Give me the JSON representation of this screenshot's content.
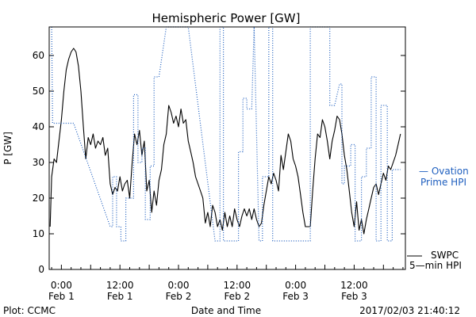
{
  "chart_data": {
    "type": "line",
    "title": "Hemispheric Power [GW]",
    "ylabel": "P [GW]",
    "xlabel": "Date and Time",
    "ylim": [
      0,
      68
    ],
    "xlim": [
      -2.5,
      70.5
    ],
    "grid": false,
    "legend_position": "right",
    "y_ticks": [
      0,
      10,
      20,
      30,
      40,
      50,
      60
    ],
    "y_tick_labels": [
      "0",
      "10",
      "20",
      "30",
      "40",
      "50",
      "60"
    ],
    "x_ticks": [
      {
        "x": 0,
        "time": "0:00",
        "date": "Feb 1"
      },
      {
        "x": 12,
        "time": "12:00",
        "date": "Feb 1"
      },
      {
        "x": 24,
        "time": "0:00",
        "date": "Feb 2"
      },
      {
        "x": 36,
        "time": "12:00",
        "date": "Feb 2"
      },
      {
        "x": 48,
        "time": "0:00",
        "date": "Feb 3"
      },
      {
        "x": 60,
        "time": "12:00",
        "date": "Feb 3"
      }
    ],
    "series": [
      {
        "name": "SWPC 5-min HPI",
        "color": "#000000",
        "style": "solid",
        "points": [
          [
            -2.3,
            12
          ],
          [
            -2.0,
            26
          ],
          [
            -1.5,
            31
          ],
          [
            -1.0,
            30
          ],
          [
            -0.5,
            36
          ],
          [
            0,
            42
          ],
          [
            0.5,
            50
          ],
          [
            1.0,
            56
          ],
          [
            1.5,
            59
          ],
          [
            2.0,
            61
          ],
          [
            2.5,
            62
          ],
          [
            3.0,
            61
          ],
          [
            3.5,
            57
          ],
          [
            4.0,
            50
          ],
          [
            4.5,
            40
          ],
          [
            5.0,
            31
          ],
          [
            5.5,
            37
          ],
          [
            6.0,
            35
          ],
          [
            6.5,
            38
          ],
          [
            7.0,
            34
          ],
          [
            7.5,
            36
          ],
          [
            8.0,
            35
          ],
          [
            8.5,
            37
          ],
          [
            9.0,
            32
          ],
          [
            9.5,
            34
          ],
          [
            10.0,
            24
          ],
          [
            10.5,
            21
          ],
          [
            11.0,
            23
          ],
          [
            11.5,
            22
          ],
          [
            12.0,
            26
          ],
          [
            12.5,
            22
          ],
          [
            13.0,
            24
          ],
          [
            13.5,
            25
          ],
          [
            14.0,
            20
          ],
          [
            14.5,
            30
          ],
          [
            15.0,
            38
          ],
          [
            15.5,
            35
          ],
          [
            16.0,
            39
          ],
          [
            16.5,
            32
          ],
          [
            17.0,
            36
          ],
          [
            17.5,
            22
          ],
          [
            18.0,
            25
          ],
          [
            18.5,
            16
          ],
          [
            19.0,
            22
          ],
          [
            19.5,
            18
          ],
          [
            20.0,
            25
          ],
          [
            20.5,
            28
          ],
          [
            21.0,
            35
          ],
          [
            21.5,
            38
          ],
          [
            22.0,
            46
          ],
          [
            22.5,
            44
          ],
          [
            23.0,
            41
          ],
          [
            23.5,
            43
          ],
          [
            24.0,
            40
          ],
          [
            24.5,
            45
          ],
          [
            25.0,
            41
          ],
          [
            25.5,
            42
          ],
          [
            26.0,
            36
          ],
          [
            26.5,
            33
          ],
          [
            27.0,
            30
          ],
          [
            27.5,
            26
          ],
          [
            28.0,
            24
          ],
          [
            28.5,
            22
          ],
          [
            29.0,
            20
          ],
          [
            29.5,
            13
          ],
          [
            30.0,
            16
          ],
          [
            30.5,
            12
          ],
          [
            31.0,
            18
          ],
          [
            31.5,
            16
          ],
          [
            32.0,
            12
          ],
          [
            32.5,
            14
          ],
          [
            33.0,
            11
          ],
          [
            33.5,
            16
          ],
          [
            34.0,
            12
          ],
          [
            34.5,
            15
          ],
          [
            35.0,
            12
          ],
          [
            35.5,
            17
          ],
          [
            36.0,
            14
          ],
          [
            36.5,
            12
          ],
          [
            37.0,
            15
          ],
          [
            37.5,
            17
          ],
          [
            38.0,
            15
          ],
          [
            38.5,
            17
          ],
          [
            39.0,
            14
          ],
          [
            39.5,
            17
          ],
          [
            40.0,
            14
          ],
          [
            40.5,
            12
          ],
          [
            41.0,
            13
          ],
          [
            41.5,
            18
          ],
          [
            42.0,
            22
          ],
          [
            42.5,
            26
          ],
          [
            43.0,
            24
          ],
          [
            43.5,
            27
          ],
          [
            44.0,
            25
          ],
          [
            44.5,
            22
          ],
          [
            45.0,
            32
          ],
          [
            45.5,
            28
          ],
          [
            46.0,
            33
          ],
          [
            46.5,
            38
          ],
          [
            47.0,
            36
          ],
          [
            47.5,
            31
          ],
          [
            48.0,
            29
          ],
          [
            48.5,
            26
          ],
          [
            49.0,
            21
          ],
          [
            49.5,
            16
          ],
          [
            50.0,
            12
          ],
          [
            51.0,
            12
          ],
          [
            51.5,
            22
          ],
          [
            52.0,
            31
          ],
          [
            52.5,
            38
          ],
          [
            53.0,
            37
          ],
          [
            53.5,
            42
          ],
          [
            54.0,
            40
          ],
          [
            54.5,
            36
          ],
          [
            55.0,
            31
          ],
          [
            55.5,
            36
          ],
          [
            56.0,
            39
          ],
          [
            56.5,
            43
          ],
          [
            57.0,
            42
          ],
          [
            57.5,
            38
          ],
          [
            58.0,
            32
          ],
          [
            58.5,
            28
          ],
          [
            59.0,
            22
          ],
          [
            59.5,
            16
          ],
          [
            60.0,
            12
          ],
          [
            60.5,
            19
          ],
          [
            61.0,
            11
          ],
          [
            61.5,
            14
          ],
          [
            62.0,
            10
          ],
          [
            62.5,
            14
          ],
          [
            63.0,
            17
          ],
          [
            63.5,
            20
          ],
          [
            64.0,
            23
          ],
          [
            64.5,
            24
          ],
          [
            65.0,
            21
          ],
          [
            65.5,
            24
          ],
          [
            66.0,
            27
          ],
          [
            66.5,
            25
          ],
          [
            67.0,
            29
          ],
          [
            67.5,
            28
          ],
          [
            68.0,
            30
          ],
          [
            68.5,
            32
          ],
          [
            69.0,
            35
          ],
          [
            69.5,
            38
          ]
        ]
      },
      {
        "name": "Ovation Prime HPI",
        "color": "#1f5fbf",
        "style": "dotted",
        "points": [
          [
            -2.0,
            68
          ],
          [
            -1.8,
            41
          ],
          [
            1.5,
            41
          ],
          [
            2.5,
            41
          ],
          [
            10.0,
            12
          ],
          [
            10.5,
            12
          ],
          [
            10.5,
            26
          ],
          [
            11.3,
            26
          ],
          [
            11.3,
            12
          ],
          [
            12.2,
            12
          ],
          [
            12.2,
            8
          ],
          [
            13.2,
            8
          ],
          [
            13.2,
            20
          ],
          [
            14.8,
            20
          ],
          [
            14.8,
            49
          ],
          [
            15.7,
            49
          ],
          [
            15.7,
            30
          ],
          [
            16.5,
            30
          ],
          [
            16.5,
            34
          ],
          [
            17.2,
            34
          ],
          [
            17.2,
            14
          ],
          [
            18.2,
            14
          ],
          [
            18.2,
            29
          ],
          [
            19.0,
            29
          ],
          [
            19.0,
            54
          ],
          [
            20.0,
            54
          ],
          [
            21.5,
            68
          ],
          [
            26.0,
            68
          ],
          [
            31.5,
            8
          ],
          [
            32.5,
            8
          ],
          [
            32.5,
            68
          ],
          [
            33.2,
            68
          ],
          [
            33.2,
            8
          ],
          [
            35.5,
            8
          ],
          [
            35.5,
            8
          ],
          [
            36.3,
            8
          ],
          [
            36.3,
            33
          ],
          [
            37.2,
            33
          ],
          [
            37.2,
            48
          ],
          [
            38.0,
            48
          ],
          [
            38.0,
            45
          ],
          [
            39.0,
            45
          ],
          [
            39.5,
            68
          ],
          [
            40.5,
            8
          ],
          [
            40.5,
            8
          ],
          [
            41.2,
            8
          ],
          [
            41.2,
            26
          ],
          [
            42.5,
            26
          ],
          [
            42.5,
            68
          ],
          [
            43.3,
            68
          ],
          [
            43.3,
            8
          ],
          [
            49.5,
            8
          ],
          [
            51.0,
            8
          ],
          [
            51.0,
            68
          ],
          [
            55.0,
            68
          ],
          [
            55.0,
            46
          ],
          [
            56.0,
            46
          ],
          [
            57.0,
            52
          ],
          [
            57.5,
            52
          ],
          [
            57.5,
            24
          ],
          [
            58.0,
            24
          ],
          [
            58.0,
            29
          ],
          [
            59.3,
            29
          ],
          [
            59.3,
            35
          ],
          [
            60.2,
            35
          ],
          [
            60.2,
            8
          ],
          [
            61.5,
            8
          ],
          [
            61.5,
            26
          ],
          [
            62.5,
            26
          ],
          [
            62.5,
            34
          ],
          [
            63.5,
            34
          ],
          [
            63.5,
            54
          ],
          [
            64.5,
            54
          ],
          [
            64.5,
            8
          ],
          [
            65.5,
            8
          ],
          [
            65.5,
            46
          ],
          [
            66.8,
            46
          ],
          [
            66.8,
            8
          ],
          [
            67.8,
            8
          ],
          [
            67.8,
            28
          ],
          [
            69.5,
            28
          ]
        ]
      }
    ],
    "legend": {
      "ovation_line1": "— Ovation",
      "ovation_line2": "Prime HPI",
      "swpc_line1": "SWPC",
      "swpc_line2": "5—min HPI"
    }
  },
  "footer": {
    "left": "Plot: CCMC",
    "right": "2017/02/03 21:40:12"
  }
}
